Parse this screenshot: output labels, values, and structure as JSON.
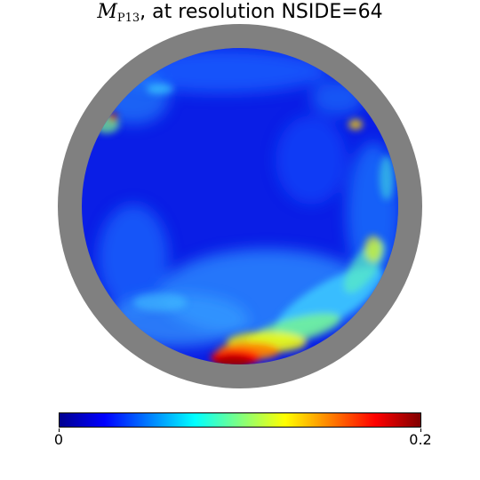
{
  "title": {
    "symbol": "M",
    "subscript": "P13",
    "text": ", at resolution NSIDE=64"
  },
  "colorbar": {
    "min_label": "0",
    "max_label": "0.2",
    "colormap": "jet"
  },
  "map": {
    "projection": "orthographic",
    "background_color": "#808080"
  }
}
